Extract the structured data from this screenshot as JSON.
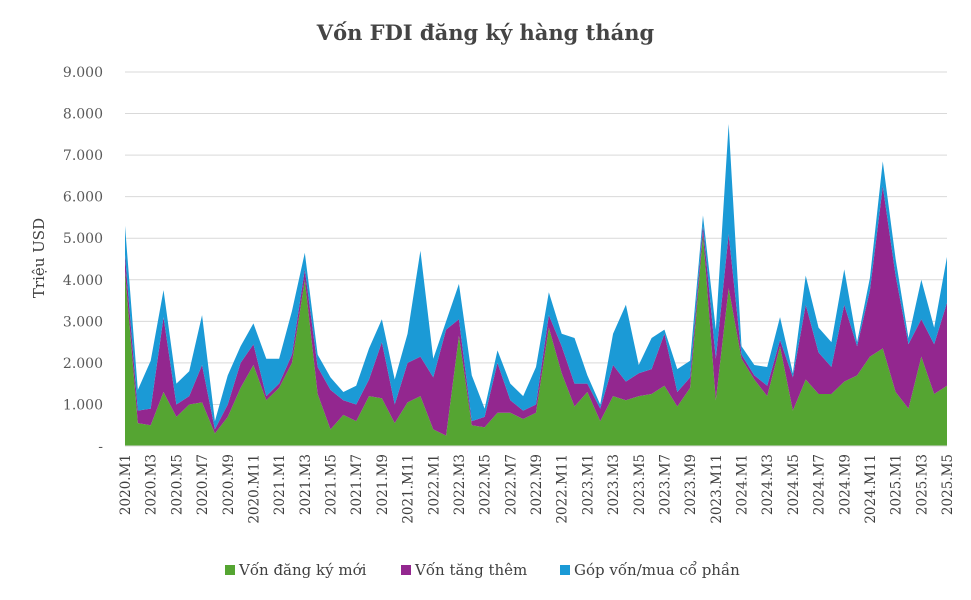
{
  "chart_data": {
    "type": "area",
    "stacked": true,
    "title": "Vốn FDI đăng ký hàng tháng",
    "ylabel": "Triệu USD",
    "xlabel": "",
    "ylim": [
      0,
      9000
    ],
    "yticks": [
      0,
      1000,
      2000,
      3000,
      4000,
      5000,
      6000,
      7000,
      8000,
      9000
    ],
    "ytick_labels": [
      "-",
      "1.000",
      "2.000",
      "3.000",
      "4.000",
      "5.000",
      "6.000",
      "7.000",
      "8.000",
      "9.000"
    ],
    "grid": "horizontal",
    "legend_position": "bottom",
    "x": [
      "2020.M1",
      "2020.M2",
      "2020.M3",
      "2020.M4",
      "2020.M5",
      "2020.M6",
      "2020.M7",
      "2020.M8",
      "2020.M9",
      "2020.M10",
      "2020.M11",
      "2020.M12",
      "2021.M1",
      "2021.M2",
      "2021.M3",
      "2021.M4",
      "2021.M5",
      "2021.M6",
      "2021.M7",
      "2021.M8",
      "2021.M9",
      "2021.M10",
      "2021.M11",
      "2021.M12",
      "2022.M1",
      "2022.M2",
      "2022.M3",
      "2022.M4",
      "2022.M5",
      "2022.M6",
      "2022.M7",
      "2022.M8",
      "2022.M9",
      "2022.M10",
      "2022.M11",
      "2022.M12",
      "2023.M1",
      "2023.M2",
      "2023.M3",
      "2023.M4",
      "2023.M5",
      "2023.M6",
      "2023.M7",
      "2023.M8",
      "2023.M9",
      "2023.M10",
      "2023.M11",
      "2023.M12",
      "2024.M1",
      "2024.M2",
      "2024.M3",
      "2024.M4",
      "2024.M5",
      "2024.M6",
      "2024.M7",
      "2024.M8",
      "2024.M9",
      "2024.M10",
      "2024.M11",
      "2024.M12",
      "2025.M1",
      "2025.M2",
      "2025.M3",
      "2025.M4",
      "2025.M5"
    ],
    "x_tick_labels": [
      "2020.M1",
      "2020.M3",
      "2020.M5",
      "2020.M7",
      "2020.M9",
      "2020.M11",
      "2021.M1",
      "2021.M3",
      "2021.M5",
      "2021.M7",
      "2021.M9",
      "2021.M11",
      "2022.M1",
      "2022.M3",
      "2022.M5",
      "2022.M7",
      "2022.M9",
      "2022.M11",
      "2023.M1",
      "2023.M3",
      "2023.M5",
      "2023.M7",
      "2023.M9",
      "2023.M11",
      "2024.M1",
      "2024.M3",
      "2024.M5",
      "2024.M7",
      "2024.M9",
      "2024.M11",
      "2025.M1",
      "2025.M3",
      "2025.M5"
    ],
    "series": [
      {
        "name": "Vốn đăng ký mới",
        "color": "#55a532",
        "values": [
          4200,
          550,
          500,
          1300,
          700,
          1000,
          1050,
          300,
          700,
          1400,
          1950,
          1100,
          1400,
          2000,
          4000,
          1250,
          400,
          750,
          600,
          1200,
          1150,
          550,
          1050,
          1200,
          400,
          250,
          2650,
          500,
          450,
          800,
          800,
          650,
          800,
          2850,
          1750,
          950,
          1300,
          600,
          1200,
          1100,
          1200,
          1250,
          1450,
          950,
          1400,
          5100,
          1100,
          3800,
          2100,
          1600,
          1200,
          2400,
          850,
          1600,
          1250,
          1250,
          1550,
          1700,
          2150,
          2350,
          1300,
          900,
          2150,
          1250,
          1450
        ]
      },
      {
        "name": "Vốn tăng thêm",
        "color": "#93278f",
        "values": [
          400,
          300,
          400,
          1800,
          300,
          200,
          900,
          100,
          300,
          600,
          500,
          100,
          100,
          200,
          250,
          650,
          950,
          350,
          400,
          400,
          1350,
          450,
          950,
          950,
          1250,
          2550,
          400,
          100,
          250,
          1200,
          300,
          200,
          200,
          300,
          650,
          550,
          200,
          300,
          750,
          450,
          550,
          600,
          1250,
          350,
          250,
          200,
          1000,
          1300,
          100,
          100,
          250,
          150,
          800,
          1800,
          1000,
          650,
          1850,
          700,
          1600,
          3900,
          2800,
          1550,
          900,
          1200,
          2000
        ]
      },
      {
        "name": "Góp vốn/mua cổ phần",
        "color": "#1b9ad6",
        "values": [
          700,
          500,
          1150,
          650,
          500,
          600,
          1200,
          200,
          700,
          400,
          500,
          900,
          600,
          1050,
          400,
          300,
          300,
          200,
          450,
          750,
          550,
          600,
          700,
          2550,
          450,
          200,
          850,
          1100,
          200,
          300,
          400,
          350,
          900,
          550,
          300,
          1100,
          200,
          100,
          750,
          1850,
          200,
          750,
          100,
          550,
          400,
          250,
          700,
          2650,
          200,
          250,
          450,
          550,
          100,
          700,
          600,
          600,
          850,
          100,
          300,
          600,
          400,
          150,
          950,
          400,
          1100
        ]
      }
    ]
  }
}
